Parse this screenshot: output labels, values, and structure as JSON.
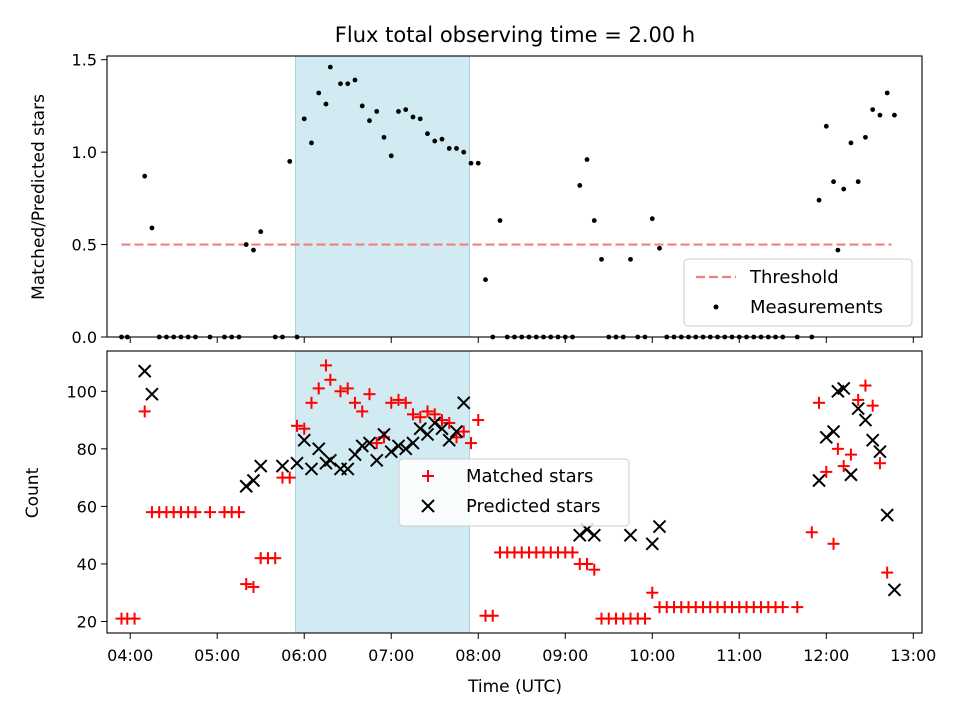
{
  "chart_data": [
    {
      "type": "scatter",
      "title": "Flux total observing time = 2.00 h",
      "ylabel": "Matched/Predicted stars",
      "xlabel": "",
      "ylim": [
        0,
        1.52
      ],
      "xlim": [
        "03:44",
        "13:06"
      ],
      "yticks": [
        "0.0",
        "0.5",
        "1.0",
        "1.5"
      ],
      "grid": false,
      "legend_position": "lower-right",
      "shaded_interval": {
        "start": "05:54",
        "end": "07:54",
        "color": "#add8e6"
      },
      "threshold": {
        "name": "Threshold",
        "value": 0.5,
        "x_start": "03:54",
        "x_end": "12:45",
        "color": "#f08080"
      },
      "series": [
        {
          "name": "Measurements",
          "color": "#000000",
          "points": [
            [
              "03:54",
              0
            ],
            [
              "03:58",
              0
            ],
            [
              "04:10",
              0.87
            ],
            [
              "04:15",
              0.59
            ],
            [
              "04:20",
              0
            ],
            [
              "04:25",
              0
            ],
            [
              "04:30",
              0
            ],
            [
              "04:35",
              0
            ],
            [
              "04:40",
              0
            ],
            [
              "04:45",
              0
            ],
            [
              "04:55",
              0
            ],
            [
              "05:05",
              0
            ],
            [
              "05:10",
              0
            ],
            [
              "05:15",
              0
            ],
            [
              "05:20",
              0.5
            ],
            [
              "05:25",
              0.47
            ],
            [
              "05:30",
              0.57
            ],
            [
              "05:40",
              0
            ],
            [
              "05:45",
              0
            ],
            [
              "05:50",
              0.95
            ],
            [
              "05:55",
              0
            ],
            [
              "06:00",
              1.18
            ],
            [
              "06:05",
              1.05
            ],
            [
              "06:10",
              1.32
            ],
            [
              "06:15",
              1.26
            ],
            [
              "06:18",
              1.46
            ],
            [
              "06:25",
              1.37
            ],
            [
              "06:30",
              1.37
            ],
            [
              "06:35",
              1.39
            ],
            [
              "06:40",
              1.25
            ],
            [
              "06:45",
              1.17
            ],
            [
              "06:50",
              1.22
            ],
            [
              "06:55",
              1.08
            ],
            [
              "07:00",
              0.98
            ],
            [
              "07:05",
              1.22
            ],
            [
              "07:10",
              1.23
            ],
            [
              "07:15",
              1.19
            ],
            [
              "07:20",
              1.18
            ],
            [
              "07:25",
              1.1
            ],
            [
              "07:30",
              1.06
            ],
            [
              "07:35",
              1.07
            ],
            [
              "07:40",
              1.02
            ],
            [
              "07:45",
              1.02
            ],
            [
              "07:50",
              1.0
            ],
            [
              "07:55",
              0.94
            ],
            [
              "08:00",
              0.94
            ],
            [
              "08:05",
              0.31
            ],
            [
              "08:10",
              0
            ],
            [
              "08:15",
              0.63
            ],
            [
              "08:20",
              0
            ],
            [
              "08:25",
              0
            ],
            [
              "08:30",
              0
            ],
            [
              "08:35",
              0
            ],
            [
              "08:40",
              0
            ],
            [
              "08:45",
              0
            ],
            [
              "08:50",
              0
            ],
            [
              "08:55",
              0
            ],
            [
              "09:00",
              0
            ],
            [
              "09:05",
              0
            ],
            [
              "09:10",
              0.82
            ],
            [
              "09:15",
              0.96
            ],
            [
              "09:20",
              0.63
            ],
            [
              "09:25",
              0.42
            ],
            [
              "09:30",
              0
            ],
            [
              "09:35",
              0
            ],
            [
              "09:40",
              0
            ],
            [
              "09:45",
              0.42
            ],
            [
              "09:50",
              0
            ],
            [
              "09:55",
              0
            ],
            [
              "10:00",
              0.64
            ],
            [
              "10:05",
              0.48
            ],
            [
              "10:10",
              0
            ],
            [
              "10:15",
              0
            ],
            [
              "10:20",
              0
            ],
            [
              "10:25",
              0
            ],
            [
              "10:30",
              0
            ],
            [
              "10:35",
              0
            ],
            [
              "10:40",
              0
            ],
            [
              "10:45",
              0
            ],
            [
              "10:50",
              0
            ],
            [
              "10:55",
              0
            ],
            [
              "11:00",
              0
            ],
            [
              "11:05",
              0
            ],
            [
              "11:10",
              0
            ],
            [
              "11:15",
              0
            ],
            [
              "11:20",
              0
            ],
            [
              "11:25",
              0
            ],
            [
              "11:30",
              0
            ],
            [
              "11:40",
              0
            ],
            [
              "11:50",
              0
            ],
            [
              "11:55",
              0.74
            ],
            [
              "12:00",
              1.14
            ],
            [
              "12:05",
              0.84
            ],
            [
              "12:08",
              0.47
            ],
            [
              "12:12",
              0.8
            ],
            [
              "12:17",
              1.05
            ],
            [
              "12:22",
              0.84
            ],
            [
              "12:27",
              1.08
            ],
            [
              "12:32",
              1.23
            ],
            [
              "12:37",
              1.2
            ],
            [
              "12:42",
              1.32
            ],
            [
              "12:47",
              1.2
            ]
          ]
        }
      ]
    },
    {
      "type": "scatter",
      "xlabel": "Time (UTC)",
      "ylabel": "Count",
      "ylim": [
        16,
        114
      ],
      "xlim": [
        "03:44",
        "13:06"
      ],
      "xticks": [
        "04:00",
        "05:00",
        "06:00",
        "07:00",
        "08:00",
        "09:00",
        "10:00",
        "11:00",
        "12:00",
        "13:00"
      ],
      "yticks": [
        "20",
        "40",
        "60",
        "80",
        "100"
      ],
      "grid": false,
      "legend_position": "center",
      "shaded_interval": {
        "start": "05:54",
        "end": "07:54",
        "color": "#add8e6"
      },
      "series": [
        {
          "name": "Matched stars",
          "marker": "plus",
          "color": "#ff0000",
          "points": [
            [
              "03:54",
              21
            ],
            [
              "03:58",
              21
            ],
            [
              "04:03",
              21
            ],
            [
              "04:10",
              93
            ],
            [
              "04:15",
              58
            ],
            [
              "04:20",
              58
            ],
            [
              "04:25",
              58
            ],
            [
              "04:30",
              58
            ],
            [
              "04:35",
              58
            ],
            [
              "04:40",
              58
            ],
            [
              "04:45",
              58
            ],
            [
              "04:55",
              58
            ],
            [
              "05:05",
              58
            ],
            [
              "05:10",
              58
            ],
            [
              "05:15",
              58
            ],
            [
              "05:20",
              33
            ],
            [
              "05:25",
              32
            ],
            [
              "05:30",
              42
            ],
            [
              "05:35",
              42
            ],
            [
              "05:40",
              42
            ],
            [
              "05:45",
              70
            ],
            [
              "05:50",
              70
            ],
            [
              "05:55",
              88
            ],
            [
              "06:00",
              87
            ],
            [
              "06:05",
              96
            ],
            [
              "06:10",
              101
            ],
            [
              "06:15",
              109
            ],
            [
              "06:18",
              104
            ],
            [
              "06:25",
              100
            ],
            [
              "06:30",
              101
            ],
            [
              "06:35",
              96
            ],
            [
              "06:40",
              93
            ],
            [
              "06:45",
              99
            ],
            [
              "06:50",
              82
            ],
            [
              "06:55",
              84
            ],
            [
              "07:00",
              96
            ],
            [
              "07:05",
              97
            ],
            [
              "07:10",
              96
            ],
            [
              "07:15",
              92
            ],
            [
              "07:20",
              91
            ],
            [
              "07:25",
              93
            ],
            [
              "07:30",
              92
            ],
            [
              "07:35",
              90
            ],
            [
              "07:40",
              89
            ],
            [
              "07:45",
              84
            ],
            [
              "07:50",
              86
            ],
            [
              "07:55",
              82
            ],
            [
              "08:00",
              90
            ],
            [
              "08:05",
              22
            ],
            [
              "08:10",
              22
            ],
            [
              "08:15",
              44
            ],
            [
              "08:20",
              44
            ],
            [
              "08:25",
              44
            ],
            [
              "08:30",
              44
            ],
            [
              "08:35",
              44
            ],
            [
              "08:40",
              44
            ],
            [
              "08:45",
              44
            ],
            [
              "08:50",
              44
            ],
            [
              "08:55",
              44
            ],
            [
              "09:00",
              44
            ],
            [
              "09:05",
              44
            ],
            [
              "09:10",
              40
            ],
            [
              "09:15",
              40
            ],
            [
              "09:20",
              38
            ],
            [
              "09:25",
              21
            ],
            [
              "09:30",
              21
            ],
            [
              "09:35",
              21
            ],
            [
              "09:40",
              21
            ],
            [
              "09:45",
              21
            ],
            [
              "09:50",
              21
            ],
            [
              "09:55",
              21
            ],
            [
              "10:00",
              30
            ],
            [
              "10:05",
              25
            ],
            [
              "10:10",
              25
            ],
            [
              "10:15",
              25
            ],
            [
              "10:20",
              25
            ],
            [
              "10:25",
              25
            ],
            [
              "10:30",
              25
            ],
            [
              "10:35",
              25
            ],
            [
              "10:40",
              25
            ],
            [
              "10:45",
              25
            ],
            [
              "10:50",
              25
            ],
            [
              "10:55",
              25
            ],
            [
              "11:00",
              25
            ],
            [
              "11:05",
              25
            ],
            [
              "11:10",
              25
            ],
            [
              "11:15",
              25
            ],
            [
              "11:20",
              25
            ],
            [
              "11:25",
              25
            ],
            [
              "11:30",
              25
            ],
            [
              "11:40",
              25
            ],
            [
              "11:50",
              51
            ],
            [
              "11:55",
              96
            ],
            [
              "12:00",
              72
            ],
            [
              "12:05",
              47
            ],
            [
              "12:08",
              80
            ],
            [
              "12:12",
              74
            ],
            [
              "12:17",
              78
            ],
            [
              "12:22",
              97
            ],
            [
              "12:27",
              102
            ],
            [
              "12:32",
              95
            ],
            [
              "12:37",
              75
            ],
            [
              "12:42",
              37
            ]
          ]
        },
        {
          "name": "Predicted stars",
          "marker": "x",
          "color": "#000000",
          "points": [
            [
              "04:10",
              107
            ],
            [
              "04:15",
              99
            ],
            [
              "05:20",
              67
            ],
            [
              "05:25",
              69
            ],
            [
              "05:30",
              74
            ],
            [
              "05:45",
              74
            ],
            [
              "05:55",
              75
            ],
            [
              "06:00",
              83
            ],
            [
              "06:05",
              73
            ],
            [
              "06:10",
              80
            ],
            [
              "06:15",
              75
            ],
            [
              "06:18",
              76
            ],
            [
              "06:25",
              73
            ],
            [
              "06:30",
              73
            ],
            [
              "06:35",
              78
            ],
            [
              "06:40",
              81
            ],
            [
              "06:45",
              82
            ],
            [
              "06:50",
              76
            ],
            [
              "06:55",
              85
            ],
            [
              "07:00",
              79
            ],
            [
              "07:05",
              81
            ],
            [
              "07:10",
              80
            ],
            [
              "07:15",
              82
            ],
            [
              "07:20",
              87
            ],
            [
              "07:25",
              85
            ],
            [
              "07:30",
              89
            ],
            [
              "07:35",
              87
            ],
            [
              "07:40",
              83
            ],
            [
              "07:45",
              86
            ],
            [
              "07:50",
              96
            ],
            [
              "09:10",
              50
            ],
            [
              "09:15",
              52
            ],
            [
              "09:20",
              50
            ],
            [
              "09:45",
              50
            ],
            [
              "10:00",
              47
            ],
            [
              "10:05",
              53
            ],
            [
              "11:55",
              69
            ],
            [
              "12:00",
              84
            ],
            [
              "12:05",
              86
            ],
            [
              "12:08",
              100
            ],
            [
              "12:12",
              101
            ],
            [
              "12:17",
              71
            ],
            [
              "12:22",
              94
            ],
            [
              "12:27",
              90
            ],
            [
              "12:32",
              83
            ],
            [
              "12:37",
              79
            ],
            [
              "12:42",
              57
            ],
            [
              "12:47",
              31
            ]
          ]
        }
      ]
    }
  ]
}
